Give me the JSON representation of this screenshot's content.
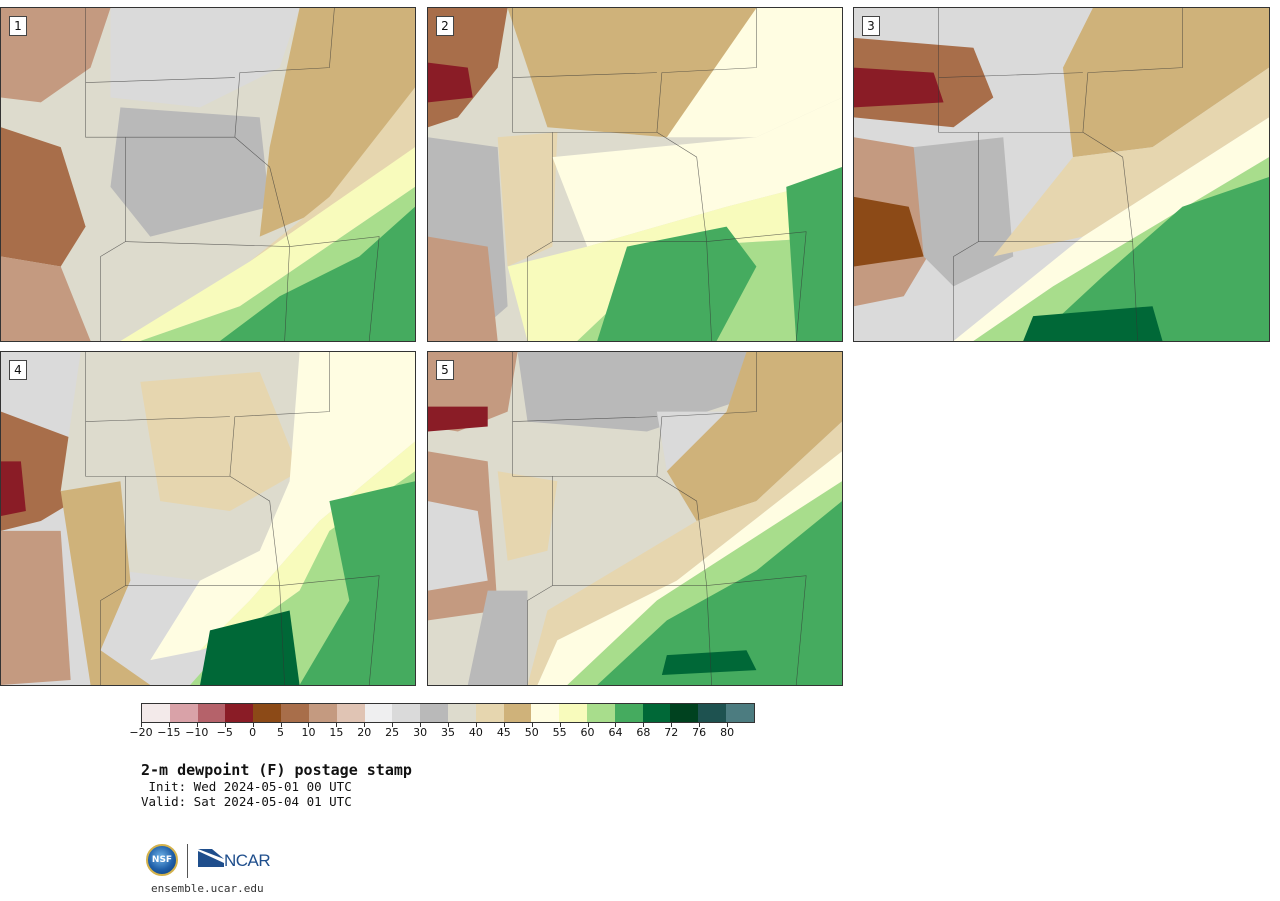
{
  "panels": [
    {
      "label": "1"
    },
    {
      "label": "2"
    },
    {
      "label": "3"
    },
    {
      "label": "4"
    },
    {
      "label": "5"
    }
  ],
  "colorbar": {
    "colors": [
      "#f3eaea",
      "#d9a2a8",
      "#b5626a",
      "#8a1c26",
      "#8c4a17",
      "#a86e4a",
      "#c49a80",
      "#e0c4b4",
      "#efeff0",
      "#dadada",
      "#b9b9b9",
      "#dddbcd",
      "#e6d6af",
      "#cfb27a",
      "#fffde2",
      "#f8fbbc",
      "#a8dd8c",
      "#45ab5f",
      "#006837",
      "#00421f",
      "#1e5250",
      "#4c7c80"
    ],
    "ticks": [
      "−20",
      "−15",
      "−10",
      "−5",
      "0",
      "5",
      "10",
      "15",
      "20",
      "25",
      "30",
      "35",
      "40",
      "45",
      "50",
      "55",
      "60",
      "64",
      "68",
      "72",
      "76",
      "80"
    ]
  },
  "title": "2-m dewpoint (F) postage stamp",
  "init": " Init: Wed 2024-05-01 00 UTC",
  "valid": "Valid: Sat 2024-05-04 01 UTC",
  "logos": {
    "nsf": "NSF",
    "ncar": "NCAR"
  },
  "url": "ensemble.ucar.edu"
}
